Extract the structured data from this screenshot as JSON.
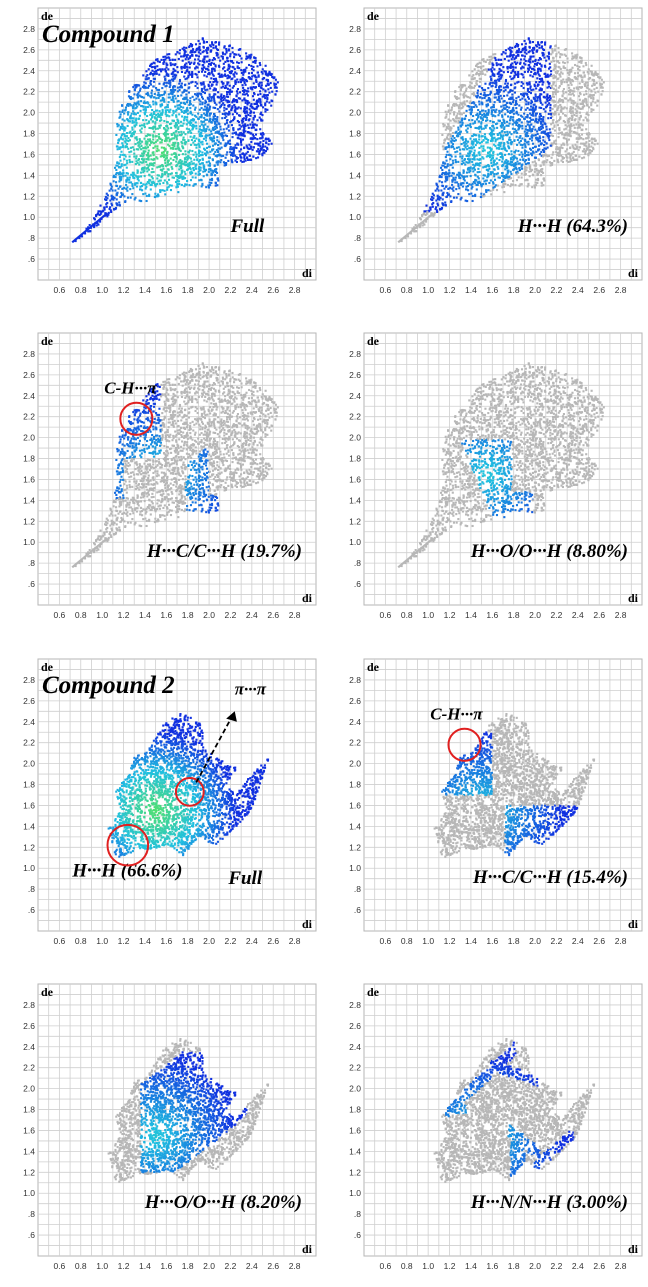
{
  "figure": {
    "compound_1_label": "Compound 1",
    "compound_2_label": "Compound 2",
    "annotations": {
      "ch_pi": "C-H···π",
      "pi_pi": "π···π"
    }
  },
  "chart_data": [
    {
      "type": "scatter",
      "panel": "compound1-full",
      "title": "Full",
      "contact_label": "Full",
      "xlabel": "di",
      "ylabel": "de",
      "xlim": [
        0.4,
        3.0
      ],
      "ylim": [
        0.4,
        3.0
      ],
      "highlight": "full",
      "compound": 1,
      "xticks": [
        "0.6",
        "0.8",
        "1.0",
        "1.2",
        "1.4",
        "1.6",
        "1.8",
        "2.0",
        "2.2",
        "2.4",
        "2.6",
        "2.8"
      ],
      "yticks": [
        "2.8",
        "2.6",
        "2.4",
        "2.2",
        "2.0",
        "1.8",
        "1.6",
        "1.4",
        "1.2",
        "1.0",
        ".8",
        ".6"
      ]
    },
    {
      "type": "scatter",
      "panel": "compound1-HH",
      "contact_label": "H···H (64.3%)",
      "percent": 64.3,
      "xlabel": "di",
      "ylabel": "de",
      "xlim": [
        0.4,
        3.0
      ],
      "ylim": [
        0.4,
        3.0
      ],
      "highlight": "HH",
      "compound": 1,
      "xticks": [
        "0.6",
        "0.8",
        "1.0",
        "1.2",
        "1.4",
        "1.6",
        "1.8",
        "2.0",
        "2.2",
        "2.4",
        "2.6",
        "2.8"
      ],
      "yticks": [
        "2.8",
        "2.6",
        "2.4",
        "2.2",
        "2.0",
        "1.8",
        "1.6",
        "1.4",
        "1.2",
        "1.0",
        ".8",
        ".6"
      ]
    },
    {
      "type": "scatter",
      "panel": "compound1-HC",
      "contact_label": "H···C/C···H (19.7%)",
      "percent": 19.7,
      "xlabel": "di",
      "ylabel": "de",
      "xlim": [
        0.4,
        3.0
      ],
      "ylim": [
        0.4,
        3.0
      ],
      "highlight": "HC",
      "compound": 1,
      "xticks": [
        "0.6",
        "0.8",
        "1.0",
        "1.2",
        "1.4",
        "1.6",
        "1.8",
        "2.0",
        "2.2",
        "2.4",
        "2.6",
        "2.8"
      ],
      "yticks": [
        "2.8",
        "2.6",
        "2.4",
        "2.2",
        "2.0",
        "1.8",
        "1.6",
        "1.4",
        "1.2",
        "1.0",
        ".8",
        ".6"
      ]
    },
    {
      "type": "scatter",
      "panel": "compound1-HO",
      "contact_label": "H···O/O···H (8.80%)",
      "percent": 8.8,
      "xlabel": "di",
      "ylabel": "de",
      "xlim": [
        0.4,
        3.0
      ],
      "ylim": [
        0.4,
        3.0
      ],
      "highlight": "HO",
      "compound": 1,
      "xticks": [
        "0.6",
        "0.8",
        "1.0",
        "1.2",
        "1.4",
        "1.6",
        "1.8",
        "2.0",
        "2.2",
        "2.4",
        "2.6",
        "2.8"
      ],
      "yticks": [
        "2.8",
        "2.6",
        "2.4",
        "2.2",
        "2.0",
        "1.8",
        "1.6",
        "1.4",
        "1.2",
        "1.0",
        ".8",
        ".6"
      ]
    },
    {
      "type": "scatter",
      "panel": "compound2-full",
      "title": "Full",
      "contact_label": "Full",
      "secondary_label": "H···H (66.6%)",
      "percent": 66.6,
      "xlabel": "di",
      "ylabel": "de",
      "xlim": [
        0.4,
        3.0
      ],
      "ylim": [
        0.4,
        3.0
      ],
      "highlight": "full",
      "compound": 2,
      "xticks": [
        "0.6",
        "0.8",
        "1.0",
        "1.2",
        "1.4",
        "1.6",
        "1.8",
        "2.0",
        "2.2",
        "2.4",
        "2.6",
        "2.8"
      ],
      "yticks": [
        "2.8",
        "2.6",
        "2.4",
        "2.2",
        "2.0",
        "1.8",
        "1.6",
        "1.4",
        "1.2",
        "1.0",
        ".8",
        ".6"
      ]
    },
    {
      "type": "scatter",
      "panel": "compound2-HC",
      "contact_label": "H···C/C···H (15.4%)",
      "percent": 15.4,
      "xlabel": "di",
      "ylabel": "de",
      "xlim": [
        0.4,
        3.0
      ],
      "ylim": [
        0.4,
        3.0
      ],
      "highlight": "HC",
      "compound": 2,
      "xticks": [
        "0.6",
        "0.8",
        "1.0",
        "1.2",
        "1.4",
        "1.6",
        "1.8",
        "2.0",
        "2.2",
        "2.4",
        "2.6",
        "2.8"
      ],
      "yticks": [
        "2.8",
        "2.6",
        "2.4",
        "2.2",
        "2.0",
        "1.8",
        "1.6",
        "1.4",
        "1.2",
        "1.0",
        ".8",
        ".6"
      ]
    },
    {
      "type": "scatter",
      "panel": "compound2-HO",
      "contact_label": "H···O/O···H (8.20%)",
      "percent": 8.2,
      "xlabel": "di",
      "ylabel": "de",
      "xlim": [
        0.4,
        3.0
      ],
      "ylim": [
        0.4,
        3.0
      ],
      "highlight": "HO",
      "compound": 2,
      "xticks": [
        "0.6",
        "0.8",
        "1.0",
        "1.2",
        "1.4",
        "1.6",
        "1.8",
        "2.0",
        "2.2",
        "2.4",
        "2.6",
        "2.8"
      ],
      "yticks": [
        "2.8",
        "2.6",
        "2.4",
        "2.2",
        "2.0",
        "1.8",
        "1.6",
        "1.4",
        "1.2",
        "1.0",
        ".8",
        ".6"
      ]
    },
    {
      "type": "scatter",
      "panel": "compound2-HN",
      "contact_label": "H···N/N···H (3.00%)",
      "percent": 3.0,
      "xlabel": "di",
      "ylabel": "de",
      "xlim": [
        0.4,
        3.0
      ],
      "ylim": [
        0.4,
        3.0
      ],
      "highlight": "HN",
      "compound": 2,
      "xticks": [
        "0.6",
        "0.8",
        "1.0",
        "1.2",
        "1.4",
        "1.6",
        "1.8",
        "2.0",
        "2.2",
        "2.4",
        "2.6",
        "2.8"
      ],
      "yticks": [
        "2.8",
        "2.6",
        "2.4",
        "2.2",
        "2.0",
        "1.8",
        "1.6",
        "1.4",
        "1.2",
        "1.0",
        ".8",
        ".6"
      ]
    }
  ],
  "colors": {
    "grid": "#cfcfcf",
    "frame": "#b5b5b5",
    "gray_fill": "#b7b7b7",
    "blue": "#1030e0",
    "cyan": "#20c0e0",
    "green": "#50e070",
    "circle": "#e02020"
  }
}
